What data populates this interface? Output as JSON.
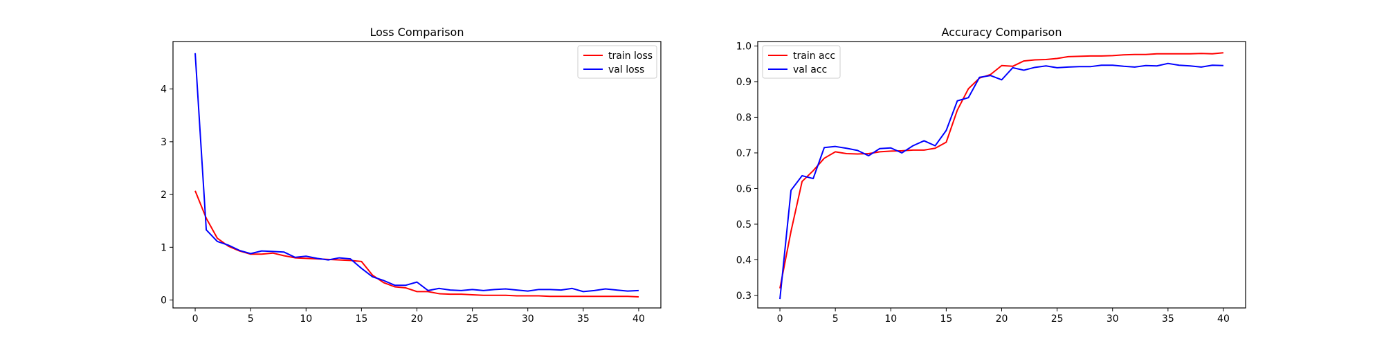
{
  "chart_data": [
    {
      "type": "line",
      "title": "Loss Comparison",
      "xlabel": "",
      "ylabel": "",
      "xlim": [
        -2,
        42
      ],
      "ylim": [
        -0.15,
        4.9
      ],
      "xticks": [
        0,
        5,
        10,
        15,
        20,
        25,
        30,
        35,
        40
      ],
      "yticks": [
        0,
        1,
        2,
        3,
        4
      ],
      "legend_position": "top-right",
      "grid": false,
      "x": [
        0,
        1,
        2,
        3,
        4,
        5,
        6,
        7,
        8,
        9,
        10,
        11,
        12,
        13,
        14,
        15,
        16,
        17,
        18,
        19,
        20,
        21,
        22,
        23,
        24,
        25,
        26,
        27,
        28,
        29,
        30,
        31,
        32,
        33,
        34,
        35,
        36,
        37,
        38,
        39,
        40
      ],
      "series": [
        {
          "name": "train loss",
          "color": "#ff0000",
          "values": [
            2.07,
            1.55,
            1.17,
            1.02,
            0.93,
            0.87,
            0.87,
            0.89,
            0.84,
            0.8,
            0.79,
            0.78,
            0.77,
            0.76,
            0.75,
            0.73,
            0.47,
            0.33,
            0.25,
            0.23,
            0.16,
            0.16,
            0.12,
            0.11,
            0.11,
            0.1,
            0.09,
            0.09,
            0.09,
            0.08,
            0.08,
            0.08,
            0.07,
            0.07,
            0.07,
            0.07,
            0.07,
            0.07,
            0.07,
            0.07,
            0.06
          ]
        },
        {
          "name": "val loss",
          "color": "#0000ff",
          "values": [
            4.68,
            1.33,
            1.11,
            1.04,
            0.94,
            0.88,
            0.93,
            0.92,
            0.91,
            0.81,
            0.83,
            0.79,
            0.76,
            0.8,
            0.78,
            0.6,
            0.44,
            0.37,
            0.28,
            0.28,
            0.34,
            0.18,
            0.22,
            0.19,
            0.18,
            0.2,
            0.18,
            0.2,
            0.21,
            0.19,
            0.17,
            0.2,
            0.2,
            0.19,
            0.22,
            0.16,
            0.18,
            0.21,
            0.19,
            0.17,
            0.18
          ]
        }
      ]
    },
    {
      "type": "line",
      "title": "Accuracy Comparison",
      "xlabel": "",
      "ylabel": "",
      "xlim": [
        -2,
        42
      ],
      "ylim": [
        0.265,
        1.0125
      ],
      "xticks": [
        0,
        5,
        10,
        15,
        20,
        25,
        30,
        35,
        40
      ],
      "yticks": [
        0.3,
        0.4,
        0.5,
        0.6,
        0.7,
        0.8,
        0.9,
        1.0
      ],
      "ytick_labels": [
        "0.3",
        "0.4",
        "0.5",
        "0.6",
        "0.7",
        "0.8",
        "0.9",
        "1.0"
      ],
      "legend_position": "top-left",
      "grid": false,
      "x": [
        0,
        1,
        2,
        3,
        4,
        5,
        6,
        7,
        8,
        9,
        10,
        11,
        12,
        13,
        14,
        15,
        16,
        17,
        18,
        19,
        20,
        21,
        22,
        23,
        24,
        25,
        26,
        27,
        28,
        29,
        30,
        31,
        32,
        33,
        34,
        35,
        36,
        37,
        38,
        39,
        40
      ],
      "series": [
        {
          "name": "train acc",
          "color": "#ff0000",
          "values": [
            0.32,
            0.48,
            0.62,
            0.65,
            0.685,
            0.703,
            0.698,
            0.697,
            0.698,
            0.703,
            0.705,
            0.706,
            0.708,
            0.708,
            0.713,
            0.73,
            0.82,
            0.88,
            0.91,
            0.92,
            0.945,
            0.943,
            0.958,
            0.961,
            0.962,
            0.965,
            0.97,
            0.971,
            0.972,
            0.972,
            0.973,
            0.975,
            0.976,
            0.976,
            0.978,
            0.978,
            0.978,
            0.978,
            0.979,
            0.978,
            0.981
          ]
        },
        {
          "name": "val acc",
          "color": "#0000ff",
          "values": [
            0.29,
            0.595,
            0.636,
            0.628,
            0.715,
            0.718,
            0.713,
            0.707,
            0.692,
            0.712,
            0.714,
            0.7,
            0.72,
            0.734,
            0.72,
            0.763,
            0.846,
            0.855,
            0.912,
            0.917,
            0.905,
            0.939,
            0.932,
            0.94,
            0.944,
            0.939,
            0.941,
            0.942,
            0.942,
            0.946,
            0.946,
            0.943,
            0.941,
            0.945,
            0.944,
            0.951,
            0.946,
            0.944,
            0.941,
            0.946,
            0.945
          ]
        }
      ]
    }
  ]
}
